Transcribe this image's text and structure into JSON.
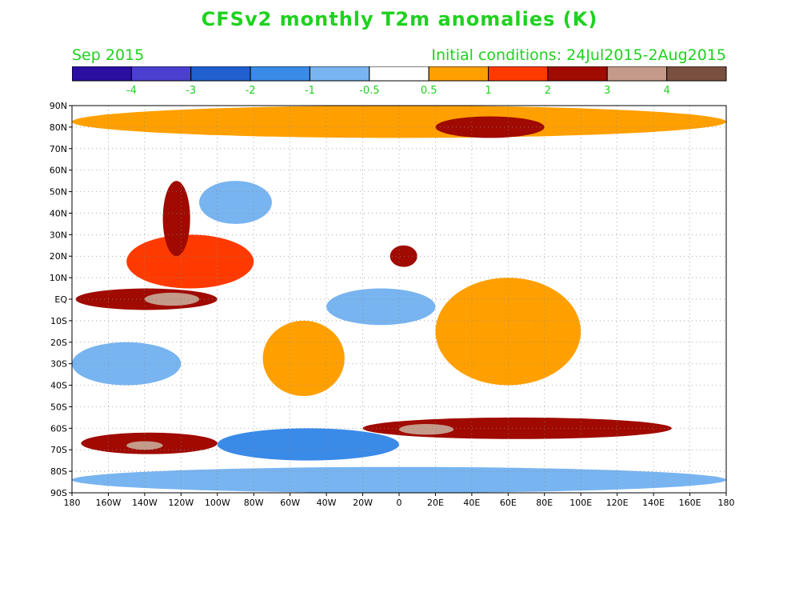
{
  "title": "CFSv2 monthly T2m anomalies (K)",
  "period": "Sep 2015",
  "initial_conditions": "Initial conditions: 24Jul2015-2Aug2015",
  "colorbar": {
    "colors": [
      "#2a0fa0",
      "#4a3fcf",
      "#1f5fcf",
      "#3a8ae8",
      "#78b4f0",
      "#ffffff",
      "#ffa000",
      "#ff3a00",
      "#a00a00",
      "#c49a8a",
      "#7a5040"
    ],
    "labels": [
      "-4",
      "-3",
      "-2",
      "-1",
      "-0.5",
      "0.5",
      "1",
      "2",
      "3",
      "4"
    ]
  },
  "axes": {
    "lat_labels": [
      "90N",
      "80N",
      "70N",
      "60N",
      "50N",
      "40N",
      "30N",
      "20N",
      "10N",
      "EQ",
      "10S",
      "20S",
      "30S",
      "40S",
      "50S",
      "60S",
      "70S",
      "80S",
      "90S"
    ],
    "lon_labels": [
      "180",
      "160W",
      "140W",
      "120W",
      "100W",
      "80W",
      "60W",
      "40W",
      "20W",
      "0",
      "20E",
      "40E",
      "60E",
      "80E",
      "100E",
      "120E",
      "140E",
      "160E",
      "180"
    ]
  },
  "chart_data": {
    "type": "heatmap",
    "title": "CFSv2 monthly T2m anomalies (K)",
    "x_range": [
      -180,
      180
    ],
    "y_range": [
      -90,
      90
    ],
    "grid": true,
    "levels": [
      -4,
      -3,
      -2,
      -1,
      -0.5,
      0.5,
      1,
      2,
      3,
      4
    ],
    "regions": [
      {
        "lon": [
          -180,
          180
        ],
        "lat": [
          75,
          90
        ],
        "value": 0.8
      },
      {
        "lon": [
          -178,
          -100
        ],
        "lat": [
          -5,
          5
        ],
        "value": 2.5
      },
      {
        "lon": [
          -140,
          -110
        ],
        "lat": [
          -3,
          3
        ],
        "value": 3.5
      },
      {
        "lon": [
          -150,
          -80
        ],
        "lat": [
          5,
          30
        ],
        "value": 1.5
      },
      {
        "lon": [
          -130,
          -115
        ],
        "lat": [
          20,
          55
        ],
        "value": 2.2
      },
      {
        "lon": [
          -110,
          -70
        ],
        "lat": [
          35,
          55
        ],
        "value": -0.8
      },
      {
        "lon": [
          -75,
          -30
        ],
        "lat": [
          -45,
          -10
        ],
        "value": 0.8
      },
      {
        "lon": [
          -5,
          10
        ],
        "lat": [
          15,
          25
        ],
        "value": 2.0
      },
      {
        "lon": [
          20,
          100
        ],
        "lat": [
          -40,
          10
        ],
        "value": 0.9
      },
      {
        "lon": [
          -20,
          150
        ],
        "lat": [
          -65,
          -55
        ],
        "value": 2.2
      },
      {
        "lon": [
          0,
          30
        ],
        "lat": [
          -63,
          -58
        ],
        "value": 3.5
      },
      {
        "lon": [
          -175,
          -100
        ],
        "lat": [
          -72,
          -62
        ],
        "value": 2.2
      },
      {
        "lon": [
          -150,
          -130
        ],
        "lat": [
          -70,
          -66
        ],
        "value": 3.8
      },
      {
        "lon": [
          20,
          80
        ],
        "lat": [
          75,
          85
        ],
        "value": 2.2
      },
      {
        "lon": [
          -180,
          -120
        ],
        "lat": [
          -40,
          -20
        ],
        "value": -0.7
      },
      {
        "lon": [
          -40,
          20
        ],
        "lat": [
          -12,
          5
        ],
        "value": -0.7
      },
      {
        "lon": [
          -100,
          0
        ],
        "lat": [
          -75,
          -60
        ],
        "value": -1.2
      },
      {
        "lon": [
          -180,
          180
        ],
        "lat": [
          -90,
          -78
        ],
        "value": -0.8
      }
    ]
  }
}
